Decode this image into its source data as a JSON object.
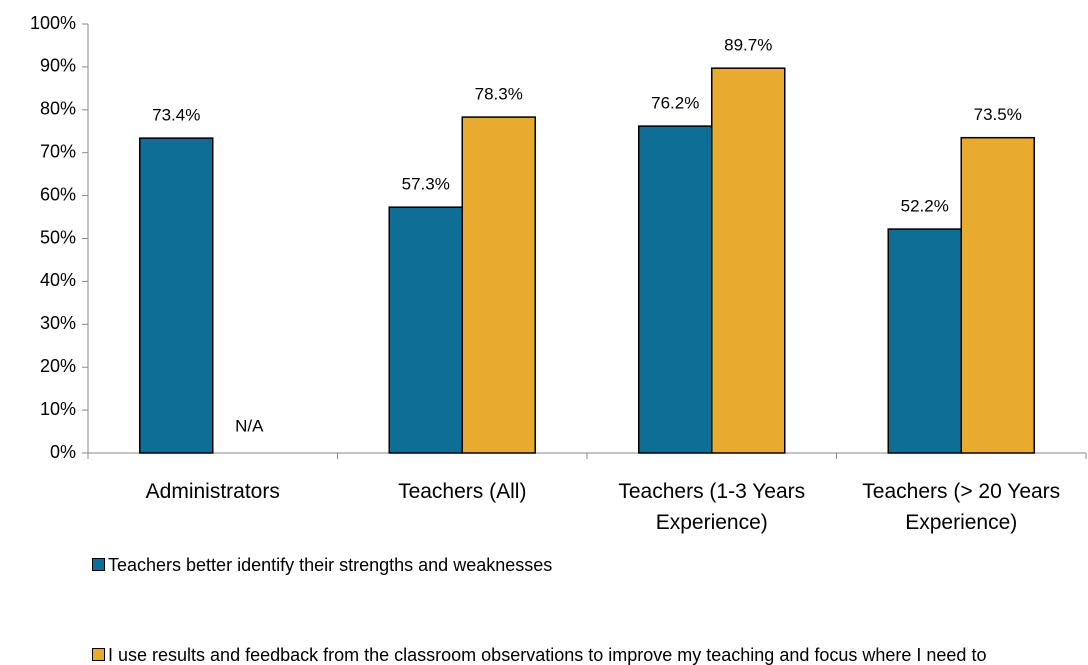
{
  "chart_data": {
    "type": "bar",
    "categories": [
      "Administrators",
      "Teachers (All)",
      "Teachers (1-3 Years Experience)",
      "Teachers (> 20 Years Experience)"
    ],
    "series": [
      {
        "name": "Teachers better identify their strengths and weaknesses",
        "color": "#0f6e96",
        "values": [
          73.4,
          57.3,
          76.2,
          52.2
        ],
        "value_labels": [
          "73.4%",
          "57.3%",
          "76.2%",
          "52.2%"
        ]
      },
      {
        "name": "I use results and feedback from the classroom observations to improve my teaching and focus where I need to grow professionally",
        "color": "#e8ab2f",
        "values": [
          null,
          78.3,
          89.7,
          73.5
        ],
        "value_labels": [
          "N/A",
          "78.3%",
          "89.7%",
          "73.5%"
        ]
      }
    ],
    "ylim": [
      0,
      100
    ],
    "yticks": [
      {
        "value": 0,
        "label": "0%"
      },
      {
        "value": 10,
        "label": "10%"
      },
      {
        "value": 20,
        "label": "20%"
      },
      {
        "value": 30,
        "label": "30%"
      },
      {
        "value": 40,
        "label": "40%"
      },
      {
        "value": 50,
        "label": "50%"
      },
      {
        "value": 60,
        "label": "60%"
      },
      {
        "value": 70,
        "label": "70%"
      },
      {
        "value": 80,
        "label": "80%"
      },
      {
        "value": 90,
        "label": "90%"
      },
      {
        "value": 100,
        "label": "100%"
      }
    ],
    "grid": false
  }
}
